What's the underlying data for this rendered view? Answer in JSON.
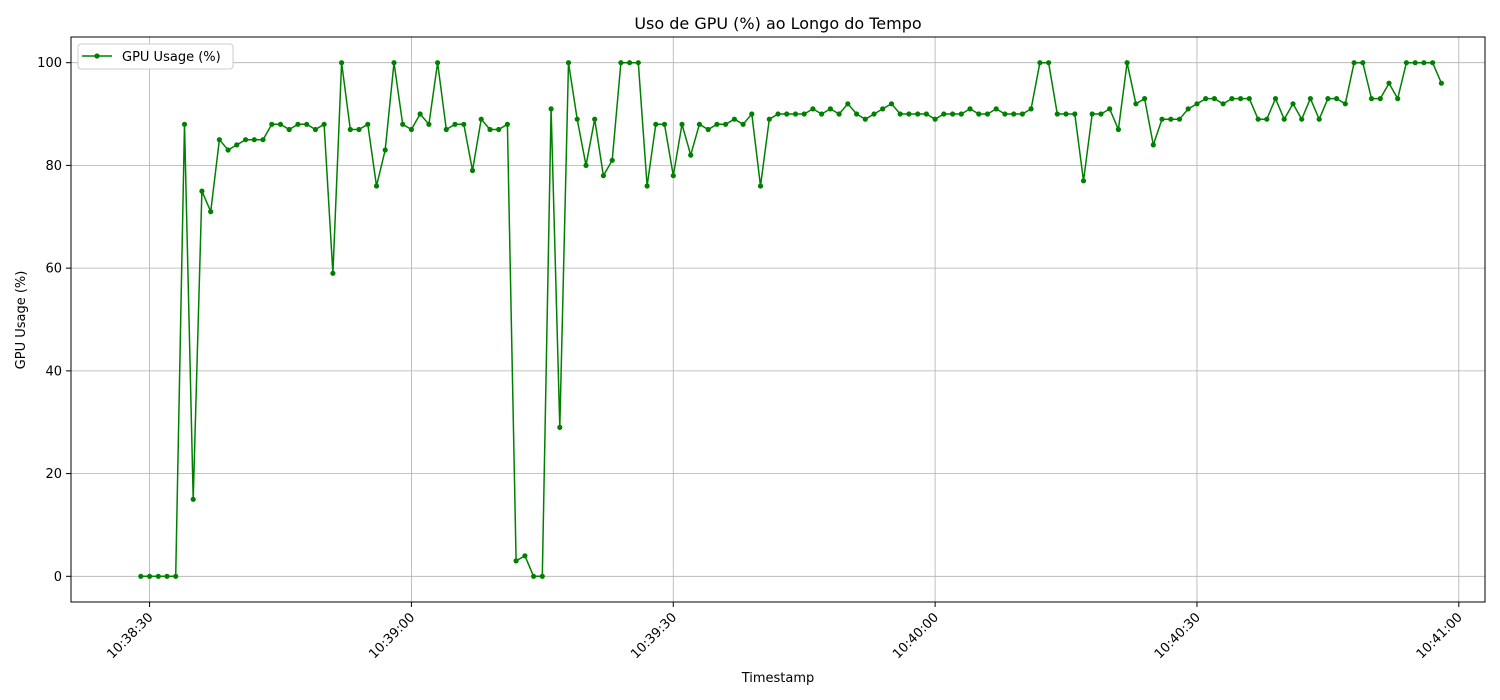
{
  "chart_data": {
    "type": "line",
    "title": "Uso de GPU (%) ao Longo do Tempo",
    "xlabel": "Timestamp",
    "ylabel": "GPU Usage (%)",
    "x_is_time": true,
    "x_start": "10:38:29",
    "x_step_seconds": 1,
    "xlim": [
      "10:38:21",
      "10:41:03"
    ],
    "ylim": [
      -5,
      105
    ],
    "x_ticks": [
      "10:38:30",
      "10:39:00",
      "10:39:30",
      "10:40:00",
      "10:40:30",
      "10:41:00"
    ],
    "y_ticks": [
      0,
      20,
      40,
      60,
      80,
      100
    ],
    "grid": true,
    "legend": "top-left",
    "series": [
      {
        "name": "GPU Usage (%)",
        "color": "#008000",
        "marker": "circle",
        "values": [
          0,
          0,
          0,
          0,
          0,
          88,
          15,
          75,
          71,
          85,
          83,
          84,
          85,
          85,
          85,
          88,
          88,
          87,
          88,
          88,
          87,
          88,
          59,
          100,
          87,
          87,
          88,
          76,
          83,
          100,
          88,
          87,
          90,
          88,
          100,
          87,
          88,
          88,
          79,
          89,
          87,
          87,
          88,
          3,
          4,
          0,
          0,
          91,
          29,
          100,
          89,
          80,
          89,
          78,
          81,
          100,
          100,
          100,
          76,
          88,
          88,
          78,
          88,
          82,
          88,
          87,
          88,
          88,
          89,
          88,
          90,
          76,
          89,
          90,
          90,
          90,
          90,
          91,
          90,
          91,
          90,
          92,
          90,
          89,
          90,
          91,
          92,
          90,
          90,
          90,
          90,
          89,
          90,
          90,
          90,
          91,
          90,
          90,
          91,
          90,
          90,
          90,
          91,
          100,
          100,
          90,
          90,
          90,
          77,
          90,
          90,
          91,
          87,
          100,
          92,
          93,
          84,
          89,
          89,
          89,
          91,
          92,
          93,
          93,
          92,
          93,
          93,
          93,
          89,
          89,
          93,
          89,
          92,
          89,
          93,
          89,
          93,
          93,
          92,
          100,
          100,
          93,
          93,
          96,
          93,
          100,
          100,
          100,
          100,
          96
        ]
      }
    ]
  }
}
